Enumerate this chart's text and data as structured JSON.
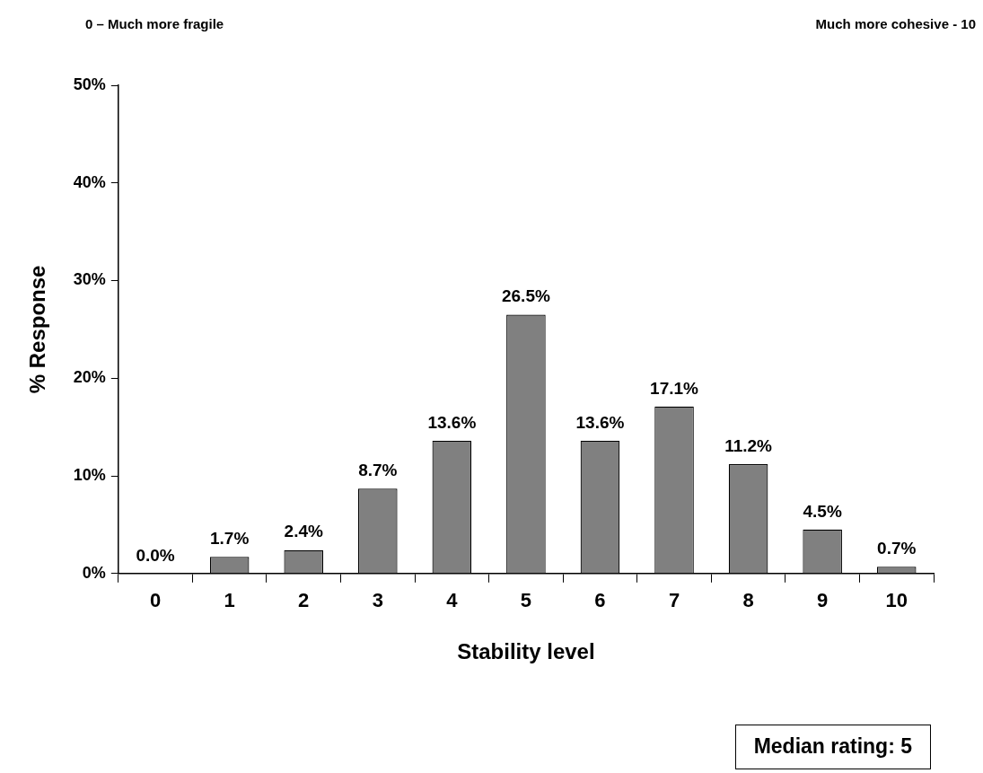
{
  "chart_data": {
    "type": "bar",
    "xlabel": "Stability level",
    "ylabel": "% Response",
    "categories": [
      "0",
      "1",
      "2",
      "3",
      "4",
      "5",
      "6",
      "7",
      "8",
      "9",
      "10"
    ],
    "values": [
      0.0,
      1.7,
      2.4,
      8.7,
      13.6,
      26.5,
      13.6,
      17.1,
      11.2,
      4.5,
      0.7
    ],
    "value_labels": [
      "0.0%",
      "1.7%",
      "2.4%",
      "8.7%",
      "13.6%",
      "26.5%",
      "13.6%",
      "17.1%",
      "11.2%",
      "4.5%",
      "0.7%"
    ],
    "color": "#808080",
    "ylim": [
      0,
      50
    ],
    "yticks": [
      {
        "value": 0,
        "label": "0%"
      },
      {
        "value": 10,
        "label": "10%"
      },
      {
        "value": 20,
        "label": "20%"
      },
      {
        "value": 30,
        "label": "30%"
      },
      {
        "value": 40,
        "label": "40%"
      },
      {
        "value": 50,
        "label": "50%"
      }
    ],
    "grid": false,
    "legend": false,
    "annotations": [
      "0 – Much more fragile",
      "Much more cohesive - 10",
      "Median rating: 5"
    ]
  }
}
